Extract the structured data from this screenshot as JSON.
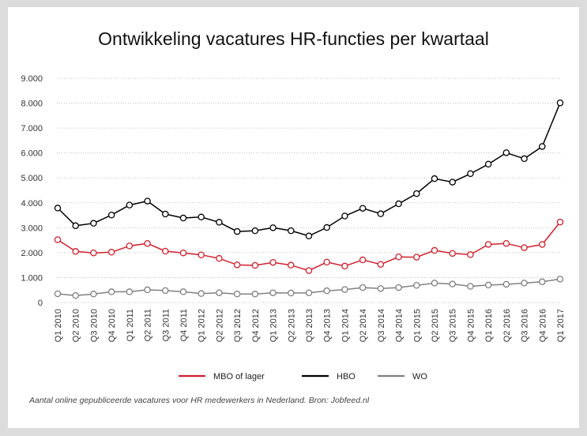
{
  "chart_data": {
    "type": "line",
    "title": "Ontwikkeling vacatures HR-functies per kwartaal",
    "categories": [
      "Q1 2010",
      "Q2 2010",
      "Q3 2010",
      "Q4 2010",
      "Q1 2011",
      "Q2 2011",
      "Q3 2011",
      "Q4 2011",
      "Q1 2012",
      "Q2 2012",
      "Q3 2012",
      "Q4 2012",
      "Q1 2013",
      "Q2 2013",
      "Q3 2013",
      "Q4 2013",
      "Q1 2014",
      "Q2 2014",
      "Q3 2014",
      "Q4 2014",
      "Q1 2015",
      "Q2 2015",
      "Q3 2015",
      "Q4 2015",
      "Q1 2016",
      "Q2 2016",
      "Q3 2016",
      "Q4 2016",
      "Q1 2017"
    ],
    "category_labels": [
      "Q1 2010",
      "Q2 2010",
      "Q3 2010",
      "Q4 2010",
      "Q1 2011",
      "Q2 2011",
      "Q3 2011",
      "Q4 2011",
      "Q1 2012",
      "Q2 2012",
      "Q3 2012",
      "Q4 2012",
      "Q1 2013",
      "Q2 2013",
      "Q3 2013",
      "Q4 2013",
      "Q1 2014",
      "Q2 2014",
      "Q3 2014",
      "Q4 2014",
      "Q1 2015",
      "Q2 2015",
      "Q3 2015",
      "Q4 2015",
      "Q1 2016",
      "Q2 2016",
      "Q3 2016",
      "Q4 2016",
      "Q1 2017"
    ],
    "ylim": [
      0,
      9000
    ],
    "y_ticks": [
      0,
      1000,
      2000,
      3000,
      4000,
      5000,
      6000,
      7000,
      8000,
      9000
    ],
    "y_tick_labels": [
      "0",
      "1.000",
      "2.000",
      "3.000",
      "4.000",
      "5.000",
      "6.000",
      "7.000",
      "8.000",
      "9.000"
    ],
    "grid": "horizontal dotted",
    "legend_position": "bottom",
    "series": [
      {
        "name": "MBO of lager",
        "color": "#d0202e",
        "values": [
          2520,
          2050,
          1990,
          2020,
          2270,
          2370,
          2060,
          1990,
          1910,
          1770,
          1510,
          1490,
          1610,
          1500,
          1280,
          1620,
          1460,
          1710,
          1530,
          1830,
          1820,
          2090,
          1970,
          1920,
          2330,
          2370,
          2200,
          2330,
          3230
        ]
      },
      {
        "name": "HBO",
        "color": "#000000",
        "values": [
          3790,
          3080,
          3180,
          3510,
          3910,
          4070,
          3550,
          3390,
          3430,
          3220,
          2850,
          2880,
          3000,
          2880,
          2670,
          3010,
          3470,
          3780,
          3560,
          3960,
          4370,
          4970,
          4830,
          5170,
          5550,
          6010,
          5770,
          6260,
          8010
        ]
      },
      {
        "name": "WO",
        "color": "#808080",
        "values": [
          350,
          280,
          340,
          430,
          430,
          510,
          480,
          430,
          360,
          390,
          340,
          340,
          390,
          380,
          390,
          470,
          520,
          600,
          560,
          600,
          690,
          780,
          740,
          650,
          700,
          730,
          780,
          830,
          940
        ]
      }
    ]
  },
  "source_note": "Aantal online gepubliceerde vacatures voor HR medewerkers in Nederland. Bron: Jobfeed.nl"
}
